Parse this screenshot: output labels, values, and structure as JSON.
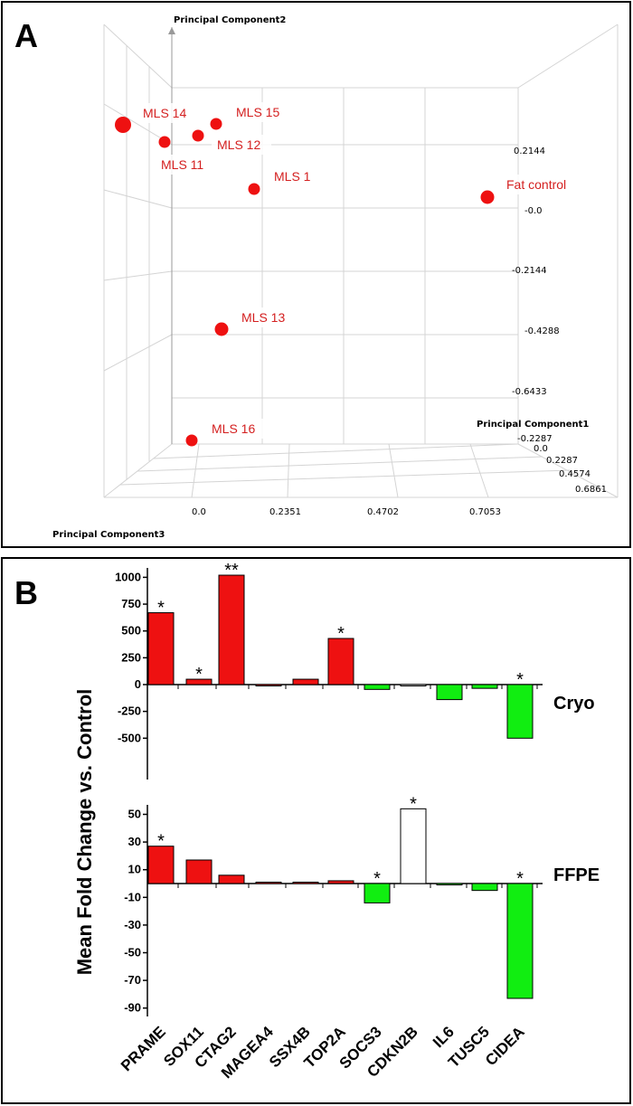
{
  "panel_a_letter": "A",
  "panel_b_letter": "B",
  "chart_data": [
    {
      "type": "scatter",
      "panel": "A",
      "axes": {
        "pc1_label": "Principal Component1",
        "pc2_label": "Principal Component2",
        "pc3_label": "Principal Component3",
        "pc1_ticks": [
          "-0.2287",
          "0.0",
          "0.2287",
          "0.4574",
          "0.6861"
        ],
        "pc2_ticks": [
          "0.2144",
          "-0.0",
          "-0.2144",
          "-0.4288",
          "-0.6433"
        ],
        "pc3_ticks": [
          "0.0",
          "0.2351",
          "0.4702",
          "0.7053"
        ]
      },
      "points": [
        {
          "label": "MLS 14"
        },
        {
          "label": "MLS 11"
        },
        {
          "label": "MLS 12"
        },
        {
          "label": "MLS 15"
        },
        {
          "label": "MLS 1"
        },
        {
          "label": "Fat control"
        },
        {
          "label": "MLS 13"
        },
        {
          "label": "MLS 16"
        }
      ],
      "point_color": "#ee1111",
      "grid": true
    },
    {
      "type": "bar",
      "panel": "B",
      "ylabel": "Mean Fold Change vs. Control",
      "categories": [
        "PRAME",
        "SOX11",
        "CTAG2",
        "MAGEA4",
        "SSX4B",
        "TOP2A",
        "SOCS3",
        "CDKN2B",
        "IL6",
        "TUSC5",
        "CIDEA"
      ],
      "subplots": [
        {
          "name": "Cryo",
          "yticks": [
            "1000",
            "750",
            "500",
            "250",
            "0",
            "-250",
            "-500"
          ],
          "ylim": [
            -500,
            1000
          ],
          "values": [
            670,
            50,
            1020,
            0,
            50,
            430,
            -45,
            0,
            -140,
            -35,
            -500
          ],
          "colors": [
            "#ee1111",
            "#ee1111",
            "#ee1111",
            "#ee1111",
            "#ee1111",
            "#ee1111",
            "#11ee11",
            "#ffffff",
            "#11ee11",
            "#11ee11",
            "#11ee11"
          ],
          "significance": [
            "*",
            "*",
            "**",
            "",
            "",
            "*",
            "",
            "",
            "",
            "",
            "*"
          ]
        },
        {
          "name": "FFPE",
          "yticks": [
            "50",
            "30",
            "10",
            "-10",
            "-30",
            "-50",
            "-70",
            "-90"
          ],
          "ylim": [
            -90,
            50
          ],
          "values": [
            27,
            17,
            6,
            1,
            1,
            2,
            -14,
            54,
            -1,
            -5,
            -83
          ],
          "colors": [
            "#ee1111",
            "#ee1111",
            "#ee1111",
            "#ee1111",
            "#ee1111",
            "#ee1111",
            "#11ee11",
            "#ffffff",
            "#11ee11",
            "#11ee11",
            "#11ee11"
          ],
          "significance": [
            "*",
            "",
            "",
            "",
            "",
            "",
            "*",
            "*",
            "",
            "",
            "*"
          ]
        }
      ]
    }
  ]
}
